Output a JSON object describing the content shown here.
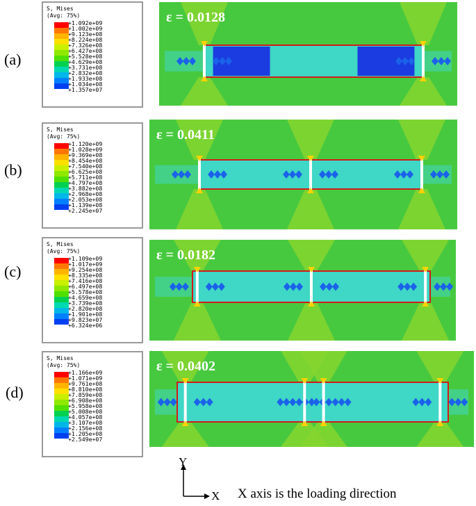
{
  "panels": [
    {
      "label": "(a)",
      "legend_header": [
        "S, Mises",
        "(Avg: 75%)"
      ],
      "legend_values": [
        "+1.092e+09",
        "+1.002e+09",
        "+9.123e+08",
        "+8.224e+08",
        "+7.326e+08",
        "+6.427e+08",
        "+5.528e+08",
        "+4.629e+08",
        "+3.731e+08",
        "+2.832e+08",
        "+1.933e+08",
        "+1.034e+08",
        "+1.357e+07"
      ],
      "strain": "ε = 0.0128"
    },
    {
      "label": "(b)",
      "legend_header": [
        "S, Mises",
        "(Avg: 75%)"
      ],
      "legend_values": [
        "+1.120e+09",
        "+1.028e+09",
        "+9.369e+08",
        "+8.454e+08",
        "+7.540e+08",
        "+6.625e+08",
        "+5.711e+08",
        "+4.797e+08",
        "+3.882e+08",
        "+2.968e+08",
        "+2.053e+08",
        "+1.139e+08",
        "+2.245e+07"
      ],
      "strain": "ε = 0.0411"
    },
    {
      "label": "(c)",
      "legend_header": [
        "S, Mises",
        "(Avg: 75%)"
      ],
      "legend_values": [
        "+1.109e+09",
        "+1.017e+09",
        "+9.254e+08",
        "+8.335e+08",
        "+7.416e+08",
        "+6.497e+08",
        "+5.578e+08",
        "+4.659e+08",
        "+3.739e+08",
        "+2.820e+08",
        "+1.901e+08",
        "+9.823e+07",
        "+6.324e+06"
      ],
      "strain": "ε = 0.0182"
    },
    {
      "label": "(d)",
      "legend_header": [
        "S, Mises",
        "(Avg: 75%)"
      ],
      "legend_values": [
        "+1.166e+09",
        "+1.071e+09",
        "+9.761e+08",
        "+8.810e+08",
        "+7.859e+08",
        "+6.908e+08",
        "+5.958e+08",
        "+5.008e+08",
        "+4.057e+08",
        "+3.107e+08",
        "+2.156e+08",
        "+1.205e+08",
        "+2.549e+07"
      ],
      "strain": "ε = 0.0402"
    }
  ],
  "colorbar": [
    "#ff0000",
    "#ff7700",
    "#ffb400",
    "#ffe000",
    "#c8f000",
    "#8ee800",
    "#50e000",
    "#00d050",
    "#00d9b0",
    "#00b7e8",
    "#0080ff",
    "#0040f0",
    "#0000d0"
  ],
  "field_colors": {
    "background": "#47c93f",
    "green_light": "#86d62f",
    "cyan": "#3fd7c5",
    "blue": "#1a3ce0",
    "outline": "#d21a1a"
  },
  "axes": {
    "y": "Y",
    "x": "X",
    "caption": "X axis is the loading direction"
  }
}
